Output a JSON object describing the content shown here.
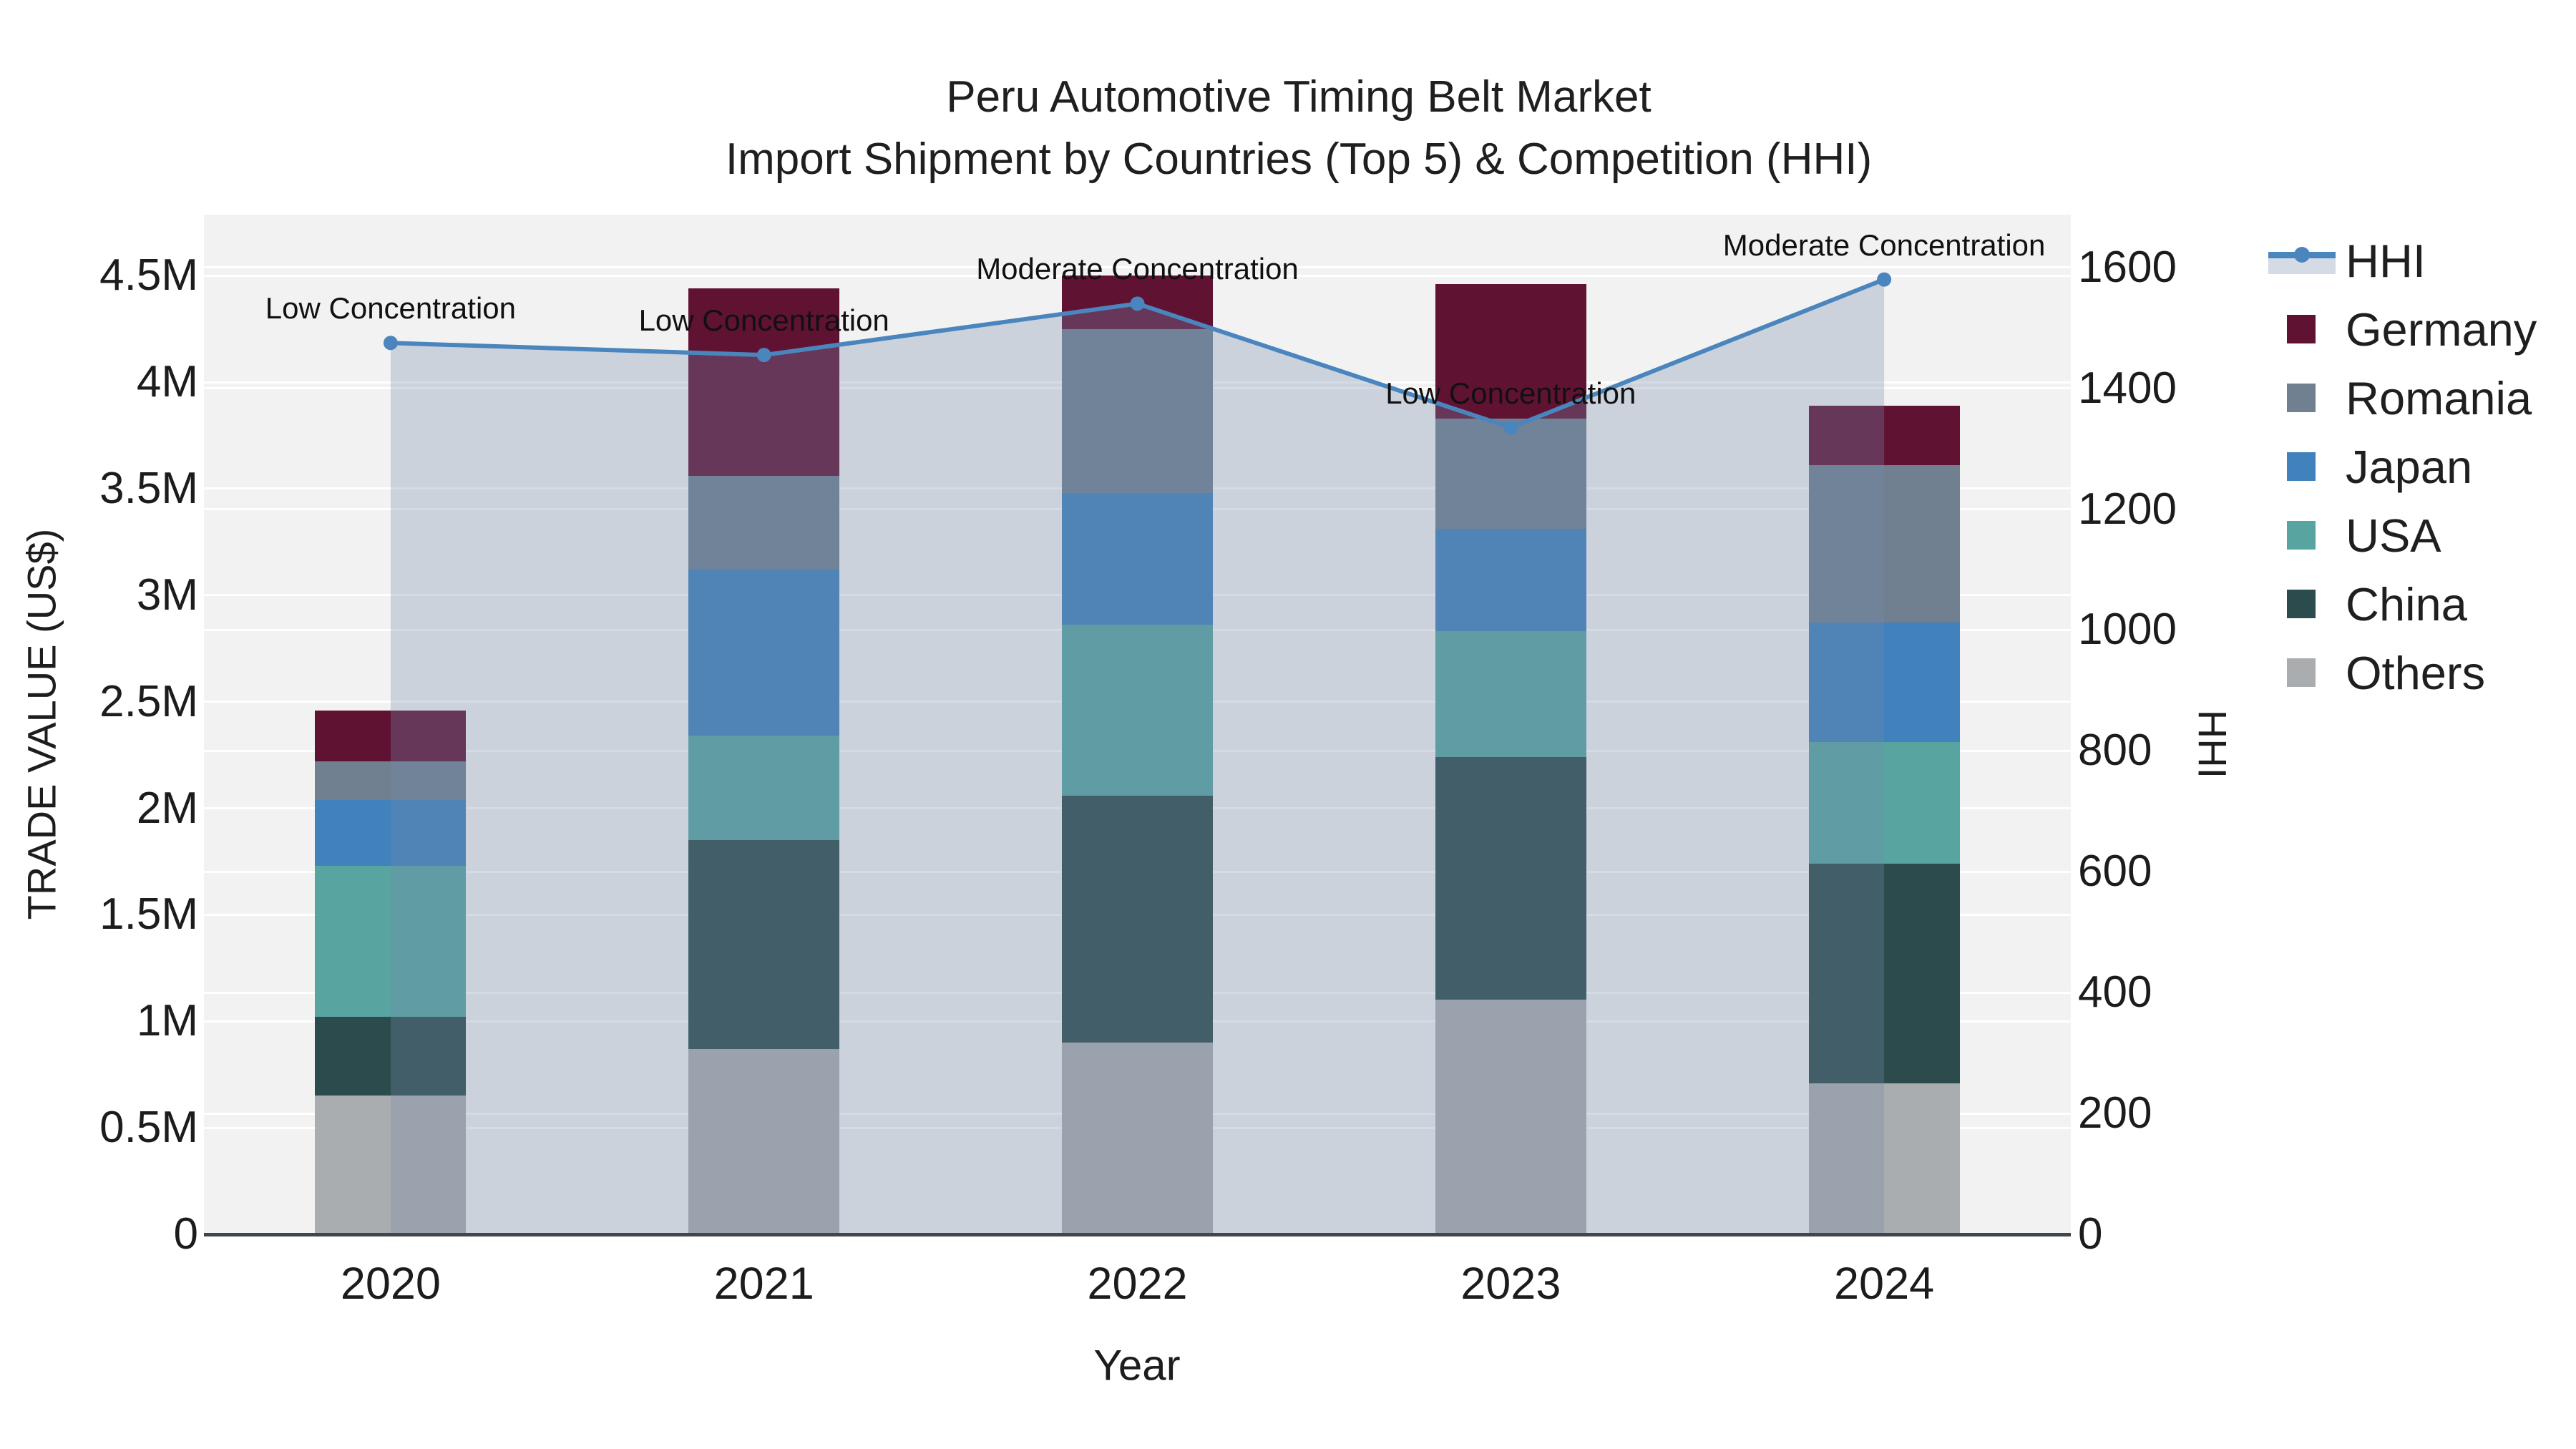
{
  "title": {
    "line1": "Peru Automotive Timing Belt Market",
    "line2": "Import Shipment by Countries (Top 5) & Competition (HHI)"
  },
  "chart_data": {
    "type": "combo: stacked bar (left axis) + line with area fill (right axis)",
    "categories": [
      "2020",
      "2021",
      "2022",
      "2023",
      "2024"
    ],
    "bar_value_unit": "million US$",
    "series": [
      {
        "name": "Others",
        "color": "#AAADAF",
        "values": [
          0.65,
          0.87,
          0.9,
          1.1,
          0.71
        ]
      },
      {
        "name": "China",
        "color": "#2B4B4C",
        "values": [
          0.37,
          0.98,
          1.16,
          1.14,
          1.03
        ]
      },
      {
        "name": "USA",
        "color": "#58A4A1",
        "values": [
          0.71,
          0.49,
          0.8,
          0.59,
          0.57
        ]
      },
      {
        "name": "Japan",
        "color": "#4181BC",
        "values": [
          0.31,
          0.78,
          0.62,
          0.48,
          0.56
        ]
      },
      {
        "name": "Romania",
        "color": "#708090",
        "values": [
          0.18,
          0.44,
          0.77,
          0.52,
          0.74
        ]
      },
      {
        "name": "Germany",
        "color": "#601233",
        "values": [
          0.24,
          0.88,
          0.25,
          0.63,
          0.28
        ]
      }
    ],
    "bar_totals": [
      2.46,
      4.44,
      4.5,
      4.46,
      3.89
    ],
    "line": {
      "name": "HHI",
      "axis": "right",
      "color": "#4A85BD",
      "fill_color": "rgba(116,139,171,0.31)",
      "values": [
        1475,
        1455,
        1540,
        1335,
        1580
      ]
    },
    "annotations": [
      "Low Concentration",
      "Low Concentration",
      "Moderate Concentration",
      "Low Concentration",
      "Moderate Concentration"
    ],
    "x_axis": {
      "title": "Year"
    },
    "y_left": {
      "title": "TRADE VALUE (US$)",
      "tick_values": [
        0,
        0.5,
        1,
        1.5,
        2,
        2.5,
        3,
        3.5,
        4,
        4.5
      ],
      "tick_labels": [
        "0",
        "0.5M",
        "1M",
        "1.5M",
        "2M",
        "2.5M",
        "3M",
        "3.5M",
        "4M",
        "4.5M"
      ],
      "range": [
        0,
        4.79
      ]
    },
    "y_right": {
      "title": "HHI",
      "tick_values": [
        0,
        200,
        400,
        600,
        800,
        1000,
        1200,
        1400,
        1600
      ],
      "tick_labels": [
        "0",
        "200",
        "400",
        "600",
        "800",
        "1000",
        "1200",
        "1400",
        "1600"
      ],
      "range": [
        0,
        1688
      ]
    },
    "grid": true,
    "legend_position": "right",
    "plot_background": "#F2F2F2",
    "gridline_color": "#FFFFFF",
    "axis_line_color": "#40464C"
  },
  "legend": {
    "items": [
      {
        "label": "HHI",
        "type": "line",
        "color": "#4A85BD"
      },
      {
        "label": "Germany",
        "type": "square",
        "color": "#601233"
      },
      {
        "label": "Romania",
        "type": "square",
        "color": "#708090"
      },
      {
        "label": "Japan",
        "type": "square",
        "color": "#4181BC"
      },
      {
        "label": "USA",
        "type": "square",
        "color": "#58A4A1"
      },
      {
        "label": "China",
        "type": "square",
        "color": "#2B4B4C"
      },
      {
        "label": "Others",
        "type": "square",
        "color": "#AAADAF"
      }
    ]
  }
}
